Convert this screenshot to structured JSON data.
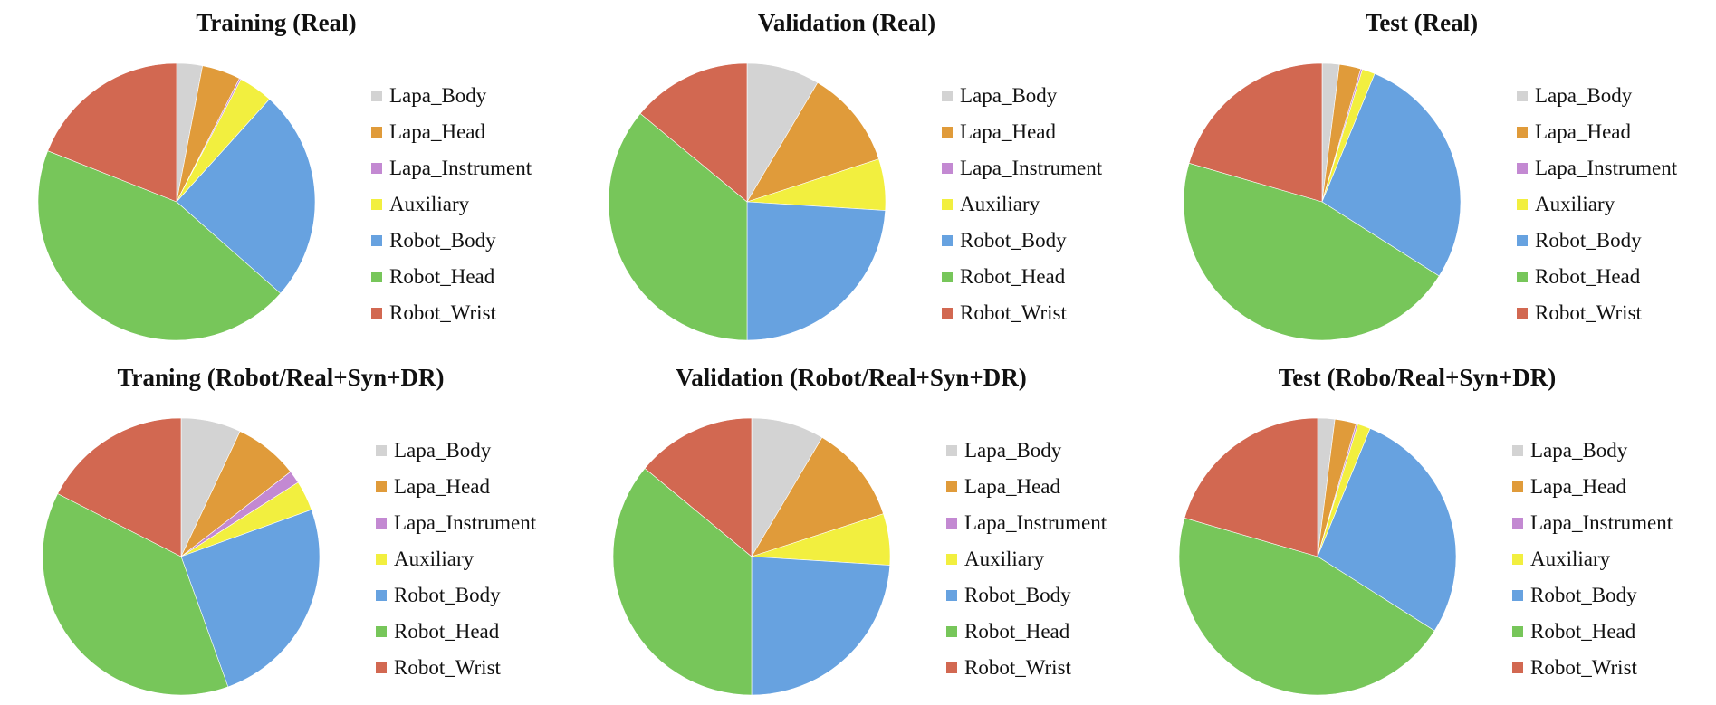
{
  "chart_data": [
    {
      "type": "pie",
      "title": "Training (Real)",
      "labels": [
        "Lapa_Body",
        "Lapa_Head",
        "Lapa_Instrument",
        "Auxiliary",
        "Robot_Body",
        "Robot_Head",
        "Robot_Wrist"
      ],
      "values": [
        3.0,
        4.5,
        0.2,
        4.0,
        24.8,
        44.5,
        19.0
      ],
      "colors": [
        "#d3d3d3",
        "#e09b3a",
        "#c389d2",
        "#f2ef3f",
        "#67a2e0",
        "#77c65a",
        "#d26851"
      ],
      "legend": "right"
    },
    {
      "type": "pie",
      "title": "Validation (Real)",
      "labels": [
        "Lapa_Body",
        "Lapa_Head",
        "Lapa_Instrument",
        "Auxiliary",
        "Robot_Body",
        "Robot_Head",
        "Robot_Wrist"
      ],
      "values": [
        8.5,
        11.5,
        0.0,
        6.0,
        24.0,
        36.0,
        14.0
      ],
      "colors": [
        "#d3d3d3",
        "#e09b3a",
        "#c389d2",
        "#f2ef3f",
        "#67a2e0",
        "#77c65a",
        "#d26851"
      ],
      "legend": "right"
    },
    {
      "type": "pie",
      "title": "Test (Real)",
      "labels": [
        "Lapa_Body",
        "Lapa_Head",
        "Lapa_Instrument",
        "Auxiliary",
        "Robot_Body",
        "Robot_Head",
        "Robot_Wrist"
      ],
      "values": [
        2.0,
        2.5,
        0.2,
        1.5,
        27.8,
        45.5,
        20.5
      ],
      "colors": [
        "#d3d3d3",
        "#e09b3a",
        "#c389d2",
        "#f2ef3f",
        "#67a2e0",
        "#77c65a",
        "#d26851"
      ],
      "legend": "right"
    },
    {
      "type": "pie",
      "title": "Traning (Robot/Real+Syn+DR)",
      "labels": [
        "Lapa_Body",
        "Lapa_Head",
        "Lapa_Instrument",
        "Auxiliary",
        "Robot_Body",
        "Robot_Head",
        "Robot_Wrist"
      ],
      "values": [
        7.0,
        7.5,
        1.5,
        3.5,
        25.0,
        38.0,
        17.5
      ],
      "colors": [
        "#d3d3d3",
        "#e09b3a",
        "#c389d2",
        "#f2ef3f",
        "#67a2e0",
        "#77c65a",
        "#d26851"
      ],
      "legend": "right"
    },
    {
      "type": "pie",
      "title": "Validation (Robot/Real+Syn+DR)",
      "labels": [
        "Lapa_Body",
        "Lapa_Head",
        "Lapa_Instrument",
        "Auxiliary",
        "Robot_Body",
        "Robot_Head",
        "Robot_Wrist"
      ],
      "values": [
        8.5,
        11.5,
        0.0,
        6.0,
        24.0,
        36.0,
        14.0
      ],
      "colors": [
        "#d3d3d3",
        "#e09b3a",
        "#c389d2",
        "#f2ef3f",
        "#67a2e0",
        "#77c65a",
        "#d26851"
      ],
      "legend": "right"
    },
    {
      "type": "pie",
      "title": "Test (Robo/Real+Syn+DR)",
      "labels": [
        "Lapa_Body",
        "Lapa_Head",
        "Lapa_Instrument",
        "Auxiliary",
        "Robot_Body",
        "Robot_Head",
        "Robot_Wrist"
      ],
      "values": [
        2.0,
        2.5,
        0.2,
        1.5,
        27.8,
        45.5,
        20.5
      ],
      "colors": [
        "#d3d3d3",
        "#e09b3a",
        "#c389d2",
        "#f2ef3f",
        "#67a2e0",
        "#77c65a",
        "#d26851"
      ],
      "legend": "right"
    }
  ]
}
